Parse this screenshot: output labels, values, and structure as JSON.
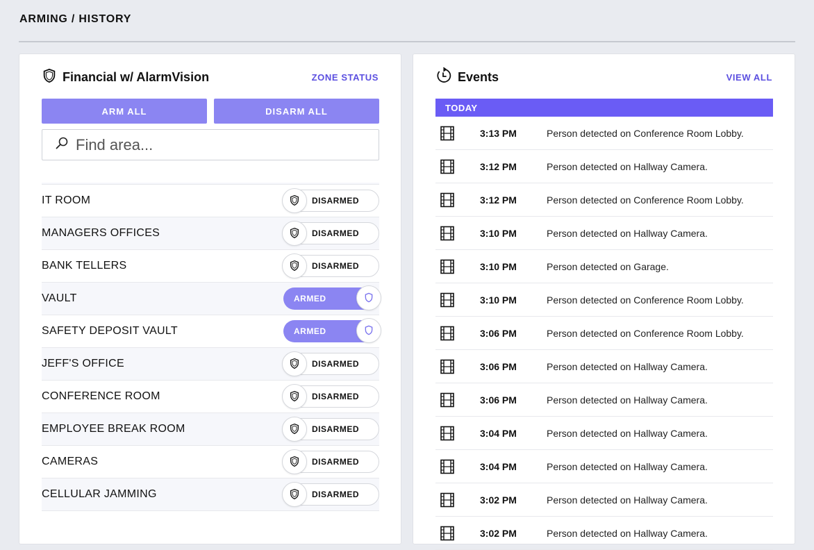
{
  "page": {
    "title": "ARMING / HISTORY"
  },
  "areas_panel": {
    "title": "Financial w/ AlarmVision",
    "icon": "shield-icon",
    "zone_status_link": "ZONE STATUS",
    "arm_all_label": "ARM ALL",
    "disarm_all_label": "DISARM ALL",
    "search_placeholder": "Find area...",
    "items": [
      {
        "name": "IT ROOM",
        "status": "DISARMED",
        "armed": false
      },
      {
        "name": "MANAGERS OFFICES",
        "status": "DISARMED",
        "armed": false
      },
      {
        "name": "BANK TELLERS",
        "status": "DISARMED",
        "armed": false
      },
      {
        "name": "VAULT",
        "status": "ARMED",
        "armed": true
      },
      {
        "name": "SAFETY DEPOSIT VAULT",
        "status": "ARMED",
        "armed": true
      },
      {
        "name": "JEFF'S OFFICE",
        "status": "DISARMED",
        "armed": false
      },
      {
        "name": "CONFERENCE ROOM",
        "status": "DISARMED",
        "armed": false
      },
      {
        "name": "EMPLOYEE BREAK ROOM",
        "status": "DISARMED",
        "armed": false
      },
      {
        "name": "CAMERAS",
        "status": "DISARMED",
        "armed": false
      },
      {
        "name": "CELLULAR JAMMING",
        "status": "DISARMED",
        "armed": false
      }
    ]
  },
  "events_panel": {
    "title": "Events",
    "icon": "history-icon",
    "view_all_link": "VIEW ALL",
    "group_label": "TODAY",
    "items": [
      {
        "time": "3:13 PM",
        "text": "Person detected on Conference Room Lobby."
      },
      {
        "time": "3:12 PM",
        "text": "Person detected on Hallway Camera."
      },
      {
        "time": "3:12 PM",
        "text": "Person detected on Conference Room Lobby."
      },
      {
        "time": "3:10 PM",
        "text": "Person detected on Hallway Camera."
      },
      {
        "time": "3:10 PM",
        "text": "Person detected on Garage."
      },
      {
        "time": "3:10 PM",
        "text": "Person detected on Conference Room Lobby."
      },
      {
        "time": "3:06 PM",
        "text": "Person detected on Conference Room Lobby."
      },
      {
        "time": "3:06 PM",
        "text": "Person detected on Hallway Camera."
      },
      {
        "time": "3:06 PM",
        "text": "Person detected on Hallway Camera."
      },
      {
        "time": "3:04 PM",
        "text": "Person detected on Hallway Camera."
      },
      {
        "time": "3:04 PM",
        "text": "Person detected on Hallway Camera."
      },
      {
        "time": "3:02 PM",
        "text": "Person detected on Hallway Camera."
      },
      {
        "time": "3:02 PM",
        "text": "Person detected on Hallway Camera."
      }
    ]
  },
  "colors": {
    "accent": "#6a5cf5",
    "button": "#8b85f2",
    "link": "#5b4fe0"
  }
}
